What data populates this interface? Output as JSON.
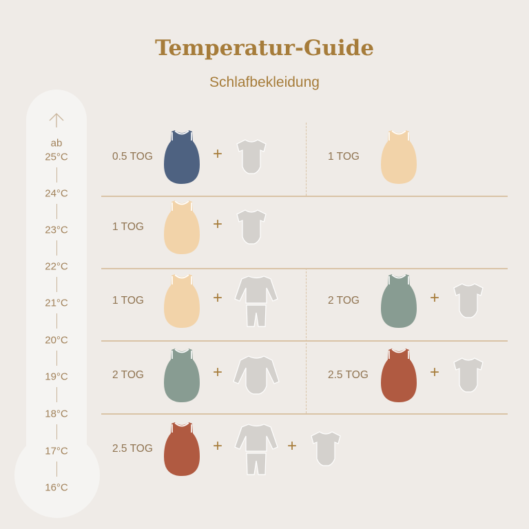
{
  "header": {
    "title": "Temperatur-Guide",
    "subtitle": "Schlafbekleidung"
  },
  "thermometer": {
    "prefix": "ab",
    "labels": [
      "25°C",
      "24°C",
      "23°C",
      "22°C",
      "21°C",
      "20°C",
      "19°C",
      "18°C",
      "17°C",
      "16°C"
    ]
  },
  "colors": {
    "navy": "#4e6281",
    "peach": "#f2d3a9",
    "sage": "#889c92",
    "rust": "#b05a41",
    "gray": "#d4d1cd",
    "accent": "#a67c3a"
  },
  "rows": [
    {
      "left": {
        "tog": "0.5 TOG",
        "sack": "navy",
        "extras": [
          "short-sleeve-bodysuit"
        ]
      },
      "right": {
        "tog": "1 TOG",
        "sack": "peach",
        "extras": []
      }
    },
    {
      "left": {
        "tog": "1 TOG",
        "sack": "peach",
        "extras": [
          "short-sleeve-bodysuit"
        ]
      }
    },
    {
      "left": {
        "tog": "1 TOG",
        "sack": "peach",
        "extras": [
          "pajamas"
        ]
      },
      "right": {
        "tog": "2 TOG",
        "sack": "sage",
        "extras": [
          "short-sleeve-bodysuit"
        ]
      }
    },
    {
      "left": {
        "tog": "2 TOG",
        "sack": "sage",
        "extras": [
          "long-sleeve-bodysuit"
        ]
      },
      "right": {
        "tog": "2.5 TOG",
        "sack": "rust",
        "extras": [
          "short-sleeve-bodysuit"
        ]
      }
    },
    {
      "left": {
        "tog": "2.5 TOG",
        "sack": "rust",
        "extras": [
          "pajamas",
          "short-sleeve-bodysuit"
        ]
      }
    }
  ],
  "plus_sign": "+"
}
